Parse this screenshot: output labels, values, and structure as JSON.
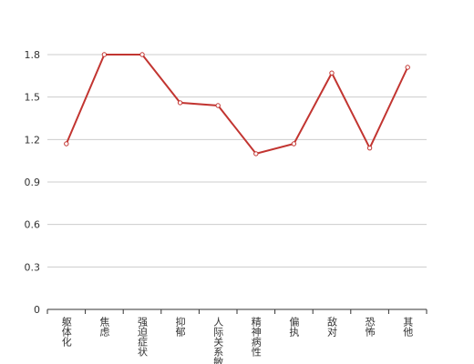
{
  "chart_data": {
    "type": "line",
    "categories": [
      "躯体化",
      "焦虑",
      "强迫症状",
      "抑郁",
      "人际关系敏感",
      "精神病性",
      "偏执",
      "敌对",
      "恐怖",
      "其他"
    ],
    "values": [
      1.17,
      1.8,
      1.8,
      1.46,
      1.44,
      1.1,
      1.17,
      1.67,
      1.14,
      1.71
    ],
    "color": "#c23531",
    "ylim": [
      0,
      1.8
    ],
    "yticks": [
      0,
      0.3,
      0.6,
      0.9,
      1.2,
      1.5,
      1.8
    ],
    "grid": true
  }
}
